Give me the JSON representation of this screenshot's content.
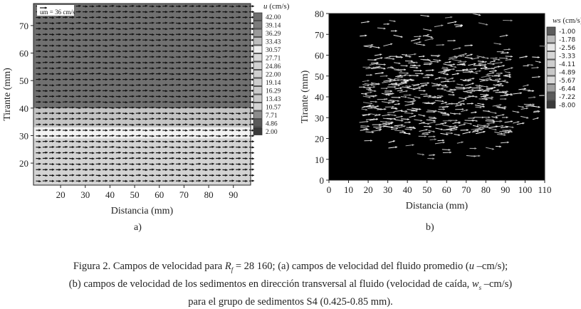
{
  "chart_data": [
    {
      "type": "vector-field",
      "panel_label": "a)",
      "xlabel": "Distancia (mm)",
      "ylabel": "Tirante (mm)",
      "xticks": [
        20,
        30,
        40,
        50,
        60,
        70,
        80,
        90
      ],
      "yticks": [
        20,
        30,
        40,
        50,
        60,
        70
      ],
      "xlim": [
        9,
        97
      ],
      "ylim": [
        12,
        78
      ],
      "reference_vector": "um = 36 cm/s",
      "colorbar": {
        "title": "u (cm/s)",
        "levels": [
          "42.00",
          "39.14",
          "36.29",
          "33.43",
          "30.57",
          "27.71",
          "24.86",
          "22.00",
          "19.14",
          "16.29",
          "13.43",
          "10.57",
          "7.71",
          "4.86",
          "2.00"
        ],
        "colors": [
          "#6e6e6e",
          "#7c7c7c",
          "#9a9a9a",
          "#bdbdbd",
          "#eeeeee",
          "#d9d9d9",
          "#d2d2d2",
          "#cfcfcf",
          "#cdcdcd",
          "#cbcbcb",
          "#c9c9c9",
          "#d4d4d4",
          "#8c8c8c",
          "#5a5a5a",
          "#3a3a3a"
        ]
      },
      "regions": [
        {
          "y_from": 40,
          "y_to": 78,
          "color": "#707070"
        },
        {
          "y_from": 33,
          "y_to": 40,
          "color": "#c4c4c4"
        },
        {
          "y_from": 29,
          "y_to": 33,
          "color": "#f2f2f2"
        },
        {
          "y_from": 12,
          "y_to": 29,
          "color": "#d3d3d3"
        }
      ]
    },
    {
      "type": "vector-field",
      "panel_label": "b)",
      "xlabel": "Distancia (mm)",
      "ylabel": "Tirante (mm)",
      "xticks": [
        0,
        10,
        20,
        30,
        40,
        50,
        60,
        70,
        80,
        90,
        100,
        110
      ],
      "yticks": [
        0,
        10,
        20,
        30,
        40,
        50,
        60,
        70,
        80
      ],
      "xlim": [
        0,
        110
      ],
      "ylim": [
        0,
        80
      ],
      "background": "#000000",
      "colorbar": {
        "title": "ws (cm/s)",
        "levels": [
          "-1.00",
          "-1.78",
          "-2.56",
          "-3.33",
          "-4.11",
          "-4.89",
          "-5.67",
          "-6.44",
          "-7.22",
          "-8.00"
        ],
        "colors": [
          "#5c5c5c",
          "#bdbdbd",
          "#e6e6e6",
          "#d6d6d6",
          "#cdcdcd",
          "#c8c8c8",
          "#d9d9d9",
          "#a0a0a0",
          "#5a5a5a",
          "#3a3a3a"
        ]
      }
    }
  ],
  "caption": {
    "line1_a": "Figura 2. Campos de velocidad para ",
    "line1_r": "R",
    "line1_sub": "f",
    "line1_b": " = 28 160; (a) campos de velocidad del fluido promedio (",
    "line1_u": "u",
    "line1_c": " –cm/s);",
    "line2_a": "(b) campos de velocidad de los sedimentos en dirección transversal al fluido (velocidad de caída, ",
    "line2_w": "w",
    "line2_sub": "s",
    "line2_b": " –cm/s)",
    "line3": "para el grupo de sedimentos S4 (0.425-0.85 mm)."
  }
}
